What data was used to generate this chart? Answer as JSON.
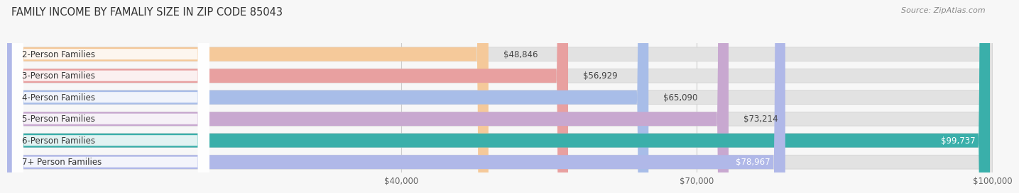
{
  "title": "FAMILY INCOME BY FAMALIY SIZE IN ZIP CODE 85043",
  "source": "Source: ZipAtlas.com",
  "categories": [
    "2-Person Families",
    "3-Person Families",
    "4-Person Families",
    "5-Person Families",
    "6-Person Families",
    "7+ Person Families"
  ],
  "values": [
    48846,
    56929,
    65090,
    73214,
    99737,
    78967
  ],
  "bar_colors": [
    "#f5c99a",
    "#e8a0a0",
    "#a8bde8",
    "#c8a8d0",
    "#3aafaa",
    "#b0b8e8"
  ],
  "label_colors": [
    "#444444",
    "#444444",
    "#444444",
    "#444444",
    "#ffffff",
    "#ffffff"
  ],
  "value_inside": [
    false,
    false,
    false,
    false,
    true,
    true
  ],
  "xlim": [
    0,
    100000
  ],
  "xticks": [
    40000,
    70000,
    100000
  ],
  "xtick_labels": [
    "$40,000",
    "$70,000",
    "$100,000"
  ],
  "bar_height": 0.65,
  "background_color": "#f7f7f7",
  "bar_bg_color": "#e2e2e2",
  "title_fontsize": 10.5,
  "label_fontsize": 8.5,
  "value_fontsize": 8.5
}
